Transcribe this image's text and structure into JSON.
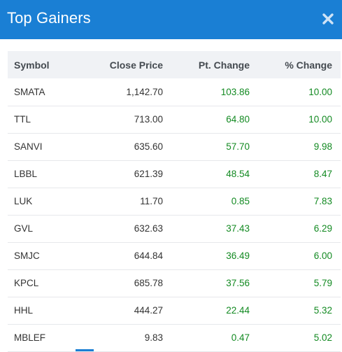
{
  "modal": {
    "title": "Top Gainers"
  },
  "table": {
    "columns": {
      "symbol": "Symbol",
      "close_price": "Close Price",
      "pt_change": "Pt. Change",
      "pct_change": "% Change"
    },
    "rows": [
      {
        "symbol": "SMATA",
        "close_price": "1,142.70",
        "pt_change": "103.86",
        "pct_change": "10.00"
      },
      {
        "symbol": "TTL",
        "close_price": "713.00",
        "pt_change": "64.80",
        "pct_change": "10.00"
      },
      {
        "symbol": "SANVI",
        "close_price": "635.60",
        "pt_change": "57.70",
        "pct_change": "9.98"
      },
      {
        "symbol": "LBBL",
        "close_price": "621.39",
        "pt_change": "48.54",
        "pct_change": "8.47"
      },
      {
        "symbol": "LUK",
        "close_price": "11.70",
        "pt_change": "0.85",
        "pct_change": "7.83"
      },
      {
        "symbol": "GVL",
        "close_price": "632.63",
        "pt_change": "37.43",
        "pct_change": "6.29"
      },
      {
        "symbol": "SMJC",
        "close_price": "644.84",
        "pt_change": "36.49",
        "pct_change": "6.00"
      },
      {
        "symbol": "KPCL",
        "close_price": "685.78",
        "pt_change": "37.56",
        "pct_change": "5.79"
      },
      {
        "symbol": "HHL",
        "close_price": "444.27",
        "pt_change": "22.44",
        "pct_change": "5.32"
      },
      {
        "symbol": "MBLEF",
        "close_price": "9.83",
        "pt_change": "0.47",
        "pct_change": "5.02"
      }
    ]
  },
  "colors": {
    "header_bg": "#1a7fd4",
    "positive": "#138a22"
  },
  "icons": {
    "close": "close-icon"
  }
}
